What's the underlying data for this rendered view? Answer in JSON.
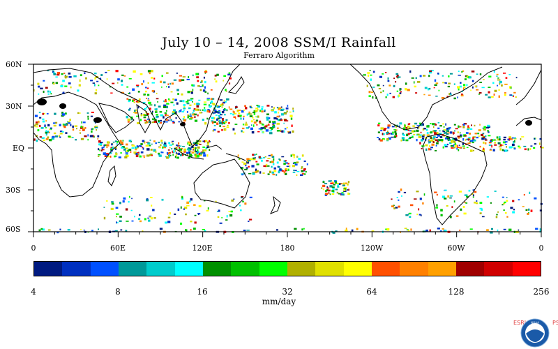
{
  "title": "July 10 – 14, 2008 SSM/I Rainfall",
  "subtitle": "Ferraro Algorithm",
  "lat_labels": [
    "60N",
    "30N",
    "EQ",
    "30S",
    "60S"
  ],
  "lon_labels": [
    "0",
    "60E",
    "120E",
    "180",
    "120W",
    "60W",
    "0"
  ],
  "colorbar": {
    "colors": [
      "#001a80",
      "#0030c0",
      "#0050ff",
      "#009999",
      "#00cccc",
      "#00ffff",
      "#009000",
      "#00c000",
      "#00ff00",
      "#b0b000",
      "#e0e000",
      "#ffff00",
      "#ff5000",
      "#ff8000",
      "#ffa000",
      "#a00000",
      "#d00000",
      "#ff0000"
    ],
    "tick_labels": [
      "4",
      "8",
      "16",
      "32",
      "64",
      "128",
      "256"
    ],
    "units": "mm/day"
  },
  "logo": {
    "esrl": "ESRL",
    "psd": "PSD",
    "noaa": "NOAA"
  }
}
